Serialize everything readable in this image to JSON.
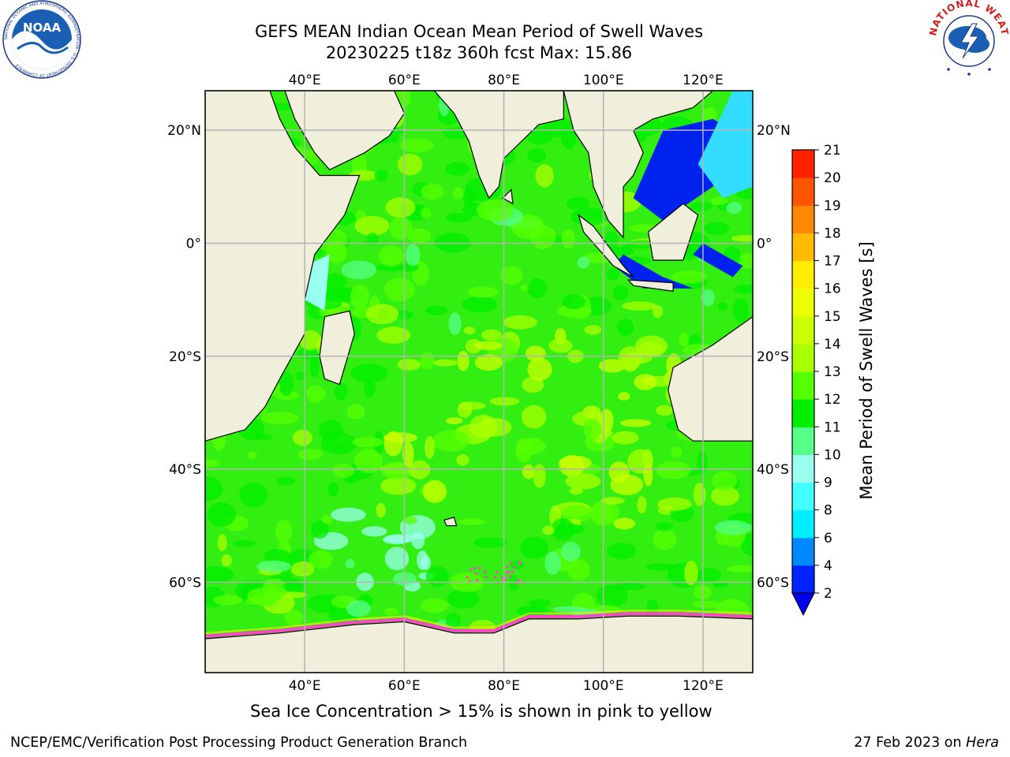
{
  "header": {
    "title_line1": "GEFS MEAN Indian Ocean Mean Period of Swell Waves",
    "title_line2": "20230225 t18z 360h fcst   Max: 15.86"
  },
  "map": {
    "projection": "cylindrical",
    "lon_range": [
      20,
      130
    ],
    "lat_range": [
      -76,
      27
    ],
    "lon_ticks": [
      {
        "value": 40,
        "label": "40°E"
      },
      {
        "value": 60,
        "label": "60°E"
      },
      {
        "value": 80,
        "label": "80°E"
      },
      {
        "value": 100,
        "label": "100°E"
      },
      {
        "value": 120,
        "label": "120°E"
      }
    ],
    "lat_ticks": [
      {
        "value": 20,
        "label": "20°N"
      },
      {
        "value": 0,
        "label": "0°"
      },
      {
        "value": -20,
        "label": "20°S"
      },
      {
        "value": -40,
        "label": "40°S"
      },
      {
        "value": -60,
        "label": "60°S"
      }
    ],
    "grid": true,
    "colors": {
      "land": "#efefdc",
      "ocean_base": "#33ee11",
      "grid": "#b4b4b4",
      "ice_pink": "#ff44cc",
      "ice_yellow": "#ffee00",
      "coast": "#000000"
    }
  },
  "colorbar": {
    "label": "Mean Period of Swell Waves [s]",
    "ticks": [
      "2",
      "4",
      "6",
      "8",
      "9",
      "10",
      "11",
      "12",
      "13",
      "14",
      "15",
      "16",
      "17",
      "18",
      "19",
      "20",
      "21"
    ],
    "colors": [
      "#0022ff",
      "#0088ff",
      "#00eeff",
      "#44ffff",
      "#99ffee",
      "#55ff88",
      "#00ee00",
      "#55ff00",
      "#aaff00",
      "#ccff00",
      "#eeff00",
      "#ffee00",
      "#ffbb00",
      "#ff8800",
      "#ff5500",
      "#ff2200"
    ],
    "under_color": "#0000ee"
  },
  "footer": {
    "ice_note": "Sea Ice Concentration > 15% is shown in pink to yellow",
    "credit_left": "NCEP/EMC/Verification Post Processing Product Generation Branch",
    "credit_date": "27 Feb 2023 on ",
    "credit_host": "Hera"
  },
  "logos": {
    "noaa_text": "NOAA",
    "noaa_ring_text": "NATIONAL OCEANIC AND ATMOSPHERIC ADMINISTRATION · U.S. DEPARTMENT OF COMMERCE",
    "nws_ring_text": "NATIONAL WEATHER SERVICE"
  }
}
